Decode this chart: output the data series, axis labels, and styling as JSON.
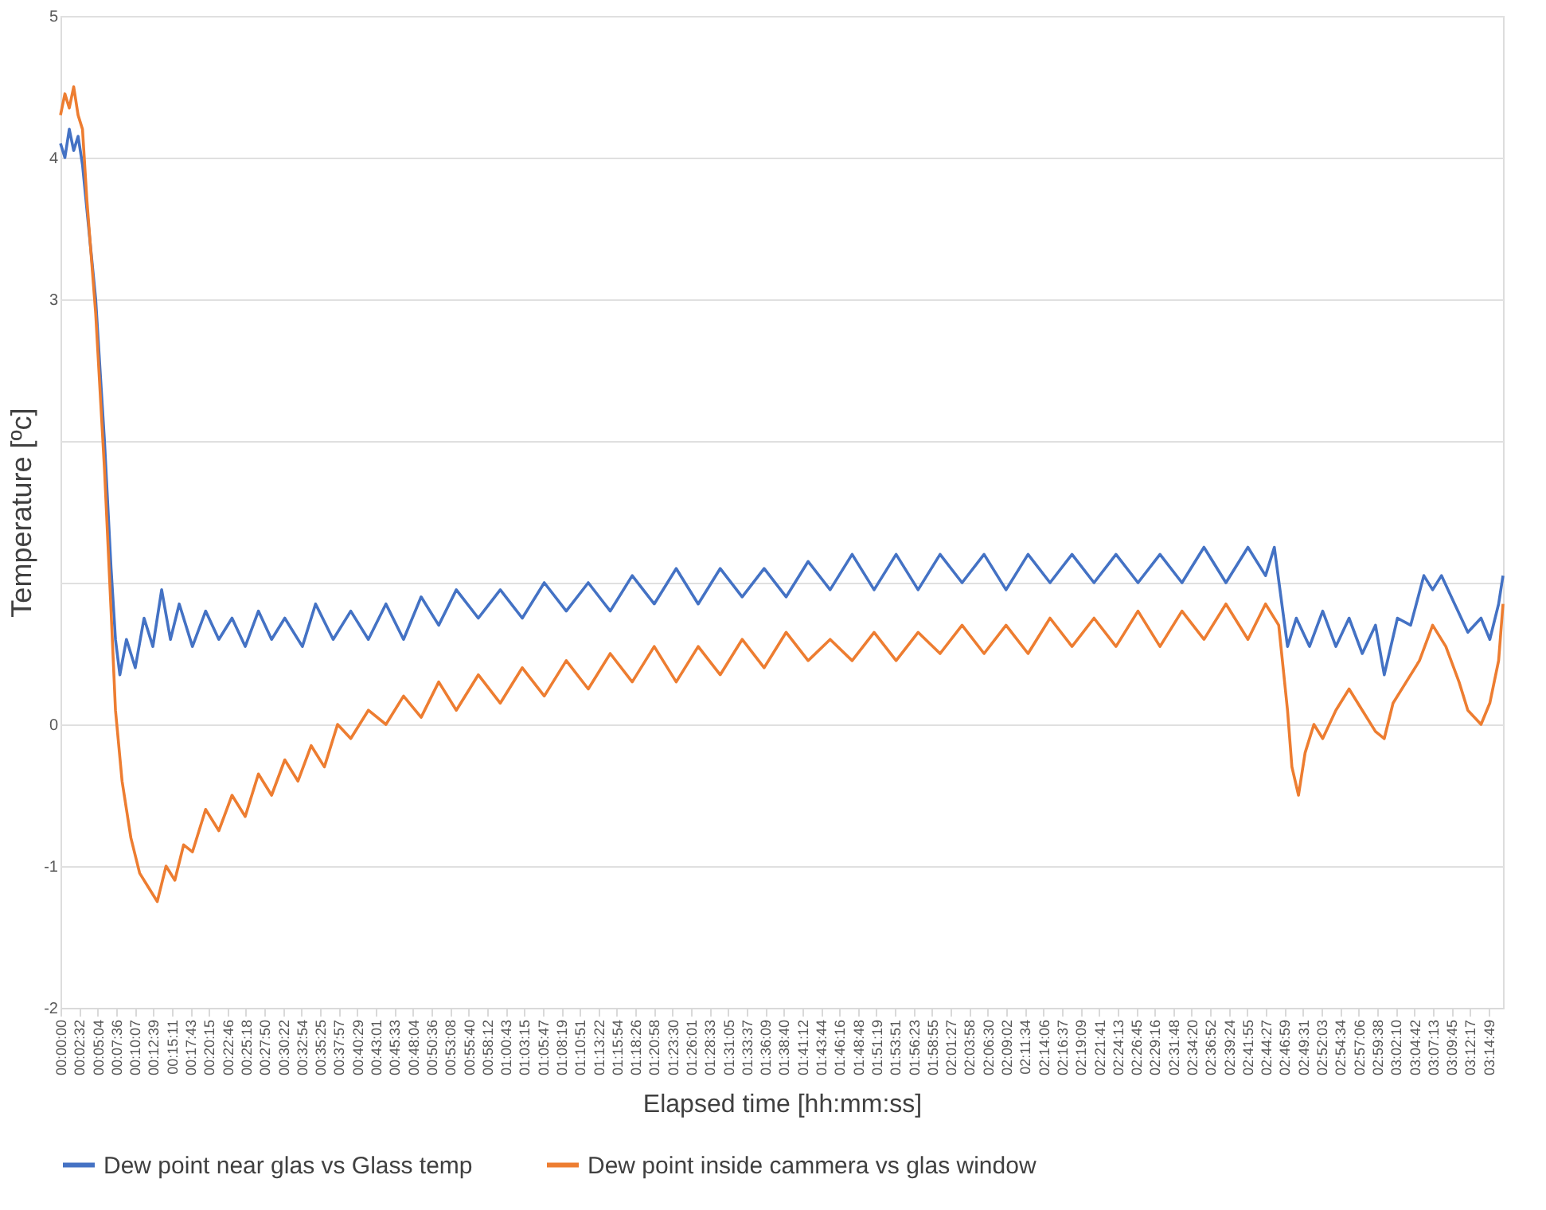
{
  "chart_data": {
    "type": "line",
    "xlabel": "Elapsed time [hh:mm:ss]",
    "ylabel": "Temperature  [ºc]",
    "legend": "bottom",
    "grid": "y",
    "line_style": "solid",
    "marker": "none",
    "xlim": [
      0,
      3.28
    ],
    "ylim": [
      -2,
      5
    ],
    "yticks": [
      -2,
      -1,
      0,
      {
        "value": 1,
        "label": null
      },
      {
        "value": 2,
        "label": null
      },
      3,
      4,
      5
    ],
    "xticks": [
      {
        "value": 0,
        "label": "00:00:00"
      },
      {
        "value": 0.0422,
        "label": "00:02:32"
      },
      {
        "value": 0.0844,
        "label": "00:05:04"
      },
      {
        "value": 0.1267,
        "label": "00:07:36"
      },
      {
        "value": 0.1686,
        "label": "00:10:07"
      },
      {
        "value": 0.2108,
        "label": "00:12:39"
      },
      {
        "value": 0.2531,
        "label": "00:15:11"
      },
      {
        "value": 0.2953,
        "label": "00:17:43"
      },
      {
        "value": 0.3375,
        "label": "00:20:15"
      },
      {
        "value": 0.3794,
        "label": "00:22:46"
      },
      {
        "value": 0.4217,
        "label": "00:25:18"
      },
      {
        "value": 0.4639,
        "label": "00:27:50"
      },
      {
        "value": 0.5061,
        "label": "00:30:22"
      },
      {
        "value": 0.5483,
        "label": "00:32:54"
      },
      {
        "value": 0.5903,
        "label": "00:35:25"
      },
      {
        "value": 0.6325,
        "label": "00:37:57"
      },
      {
        "value": 0.6747,
        "label": "00:40:29"
      },
      {
        "value": 0.7169,
        "label": "00:43:01"
      },
      {
        "value": 0.7592,
        "label": "00:45:33"
      },
      {
        "value": 0.8011,
        "label": "00:48:04"
      },
      {
        "value": 0.8433,
        "label": "00:50:36"
      },
      {
        "value": 0.8856,
        "label": "00:53:08"
      },
      {
        "value": 0.9278,
        "label": "00:55:40"
      },
      {
        "value": 0.97,
        "label": "00:58:12"
      },
      {
        "value": 1.0119,
        "label": "01:00:43"
      },
      {
        "value": 1.0542,
        "label": "01:03:15"
      },
      {
        "value": 1.0964,
        "label": "01:05:47"
      },
      {
        "value": 1.1386,
        "label": "01:08:19"
      },
      {
        "value": 1.1808,
        "label": "01:10:51"
      },
      {
        "value": 1.2228,
        "label": "01:13:22"
      },
      {
        "value": 1.265,
        "label": "01:15:54"
      },
      {
        "value": 1.3072,
        "label": "01:18:26"
      },
      {
        "value": 1.3494,
        "label": "01:20:58"
      },
      {
        "value": 1.3917,
        "label": "01:23:30"
      },
      {
        "value": 1.4336,
        "label": "01:26:01"
      },
      {
        "value": 1.4758,
        "label": "01:28:33"
      },
      {
        "value": 1.5181,
        "label": "01:31:05"
      },
      {
        "value": 1.5603,
        "label": "01:33:37"
      },
      {
        "value": 1.6025,
        "label": "01:36:09"
      },
      {
        "value": 1.6444,
        "label": "01:38:40"
      },
      {
        "value": 1.6867,
        "label": "01:41:12"
      },
      {
        "value": 1.7289,
        "label": "01:43:44"
      },
      {
        "value": 1.7711,
        "label": "01:46:16"
      },
      {
        "value": 1.8133,
        "label": "01:48:48"
      },
      {
        "value": 1.8553,
        "label": "01:51:19"
      },
      {
        "value": 1.8975,
        "label": "01:53:51"
      },
      {
        "value": 1.9397,
        "label": "01:56:23"
      },
      {
        "value": 1.9819,
        "label": "01:58:55"
      },
      {
        "value": 2.0242,
        "label": "02:01:27"
      },
      {
        "value": 2.0661,
        "label": "02:03:58"
      },
      {
        "value": 2.1083,
        "label": "02:06:30"
      },
      {
        "value": 2.1506,
        "label": "02:09:02"
      },
      {
        "value": 2.1928,
        "label": "02:11:34"
      },
      {
        "value": 2.235,
        "label": "02:14:06"
      },
      {
        "value": 2.2769,
        "label": "02:16:37"
      },
      {
        "value": 2.3192,
        "label": "02:19:09"
      },
      {
        "value": 2.3614,
        "label": "02:21:41"
      },
      {
        "value": 2.4036,
        "label": "02:24:13"
      },
      {
        "value": 2.4458,
        "label": "02:26:45"
      },
      {
        "value": 2.4878,
        "label": "02:29:16"
      },
      {
        "value": 2.53,
        "label": "02:31:48"
      },
      {
        "value": 2.5722,
        "label": "02:34:20"
      },
      {
        "value": 2.6144,
        "label": "02:36:52"
      },
      {
        "value": 2.6567,
        "label": "02:39:24"
      },
      {
        "value": 2.6986,
        "label": "02:41:55"
      },
      {
        "value": 2.7408,
        "label": "02:44:27"
      },
      {
        "value": 2.7831,
        "label": "02:46:59"
      },
      {
        "value": 2.8253,
        "label": "02:49:31"
      },
      {
        "value": 2.8675,
        "label": "02:52:03"
      },
      {
        "value": 2.9094,
        "label": "02:54:34"
      },
      {
        "value": 2.9517,
        "label": "02:57:06"
      },
      {
        "value": 2.9939,
        "label": "02:59:38"
      },
      {
        "value": 3.0361,
        "label": "03:02:10"
      },
      {
        "value": 3.0783,
        "label": "03:04:42"
      },
      {
        "value": 3.1203,
        "label": "03:07:13"
      },
      {
        "value": 3.1625,
        "label": "03:09:45"
      },
      {
        "value": 3.2047,
        "label": "03:12:17"
      },
      {
        "value": 3.2469,
        "label": "03:14:49"
      }
    ],
    "series": [
      {
        "name": "Dew point near glas vs Glass temp",
        "color": "#4472c4",
        "x": [
          0,
          0.01,
          0.02,
          0.03,
          0.04,
          0.05,
          0.08,
          0.1,
          0.115,
          0.125,
          0.135,
          0.15,
          0.17,
          0.19,
          0.21,
          0.23,
          0.25,
          0.27,
          0.3,
          0.33,
          0.36,
          0.39,
          0.42,
          0.45,
          0.48,
          0.51,
          0.55,
          0.58,
          0.62,
          0.66,
          0.7,
          0.74,
          0.78,
          0.82,
          0.86,
          0.9,
          0.95,
          1.0,
          1.05,
          1.1,
          1.15,
          1.2,
          1.25,
          1.3,
          1.35,
          1.4,
          1.45,
          1.5,
          1.55,
          1.6,
          1.65,
          1.7,
          1.75,
          1.8,
          1.85,
          1.9,
          1.95,
          2.0,
          2.05,
          2.1,
          2.15,
          2.2,
          2.25,
          2.3,
          2.35,
          2.4,
          2.45,
          2.5,
          2.55,
          2.6,
          2.65,
          2.7,
          2.74,
          2.76,
          2.775,
          2.79,
          2.81,
          2.84,
          2.87,
          2.9,
          2.93,
          2.96,
          2.99,
          3.01,
          3.04,
          3.07,
          3.1,
          3.12,
          3.14,
          3.17,
          3.2,
          3.23,
          3.25,
          3.27,
          3.28
        ],
        "values": [
          4.1,
          4.0,
          4.2,
          4.05,
          4.15,
          3.95,
          3.0,
          2.0,
          1.1,
          0.6,
          0.35,
          0.6,
          0.4,
          0.75,
          0.55,
          0.95,
          0.6,
          0.85,
          0.55,
          0.8,
          0.6,
          0.75,
          0.55,
          0.8,
          0.6,
          0.75,
          0.55,
          0.85,
          0.6,
          0.8,
          0.6,
          0.85,
          0.6,
          0.9,
          0.7,
          0.95,
          0.75,
          0.95,
          0.75,
          1.0,
          0.8,
          1.0,
          0.8,
          1.05,
          0.85,
          1.1,
          0.85,
          1.1,
          0.9,
          1.1,
          0.9,
          1.15,
          0.95,
          1.2,
          0.95,
          1.2,
          0.95,
          1.2,
          1.0,
          1.2,
          0.95,
          1.2,
          1.0,
          1.2,
          1.0,
          1.2,
          1.0,
          1.2,
          1.0,
          1.25,
          1.0,
          1.25,
          1.05,
          1.25,
          0.9,
          0.55,
          0.75,
          0.55,
          0.8,
          0.55,
          0.75,
          0.5,
          0.7,
          0.35,
          0.75,
          0.7,
          1.05,
          0.95,
          1.05,
          0.85,
          0.65,
          0.75,
          0.6,
          0.85,
          1.05
        ]
      },
      {
        "name": "Dew point inside cammera vs glas window",
        "color": "#ed7d31",
        "x": [
          0,
          0.01,
          0.02,
          0.03,
          0.04,
          0.05,
          0.06,
          0.08,
          0.1,
          0.115,
          0.125,
          0.14,
          0.16,
          0.18,
          0.2,
          0.22,
          0.24,
          0.26,
          0.28,
          0.3,
          0.33,
          0.36,
          0.39,
          0.42,
          0.45,
          0.48,
          0.51,
          0.54,
          0.57,
          0.6,
          0.63,
          0.66,
          0.7,
          0.74,
          0.78,
          0.82,
          0.86,
          0.9,
          0.95,
          1.0,
          1.05,
          1.1,
          1.15,
          1.2,
          1.25,
          1.3,
          1.35,
          1.4,
          1.45,
          1.5,
          1.55,
          1.6,
          1.65,
          1.7,
          1.75,
          1.8,
          1.85,
          1.9,
          1.95,
          2.0,
          2.05,
          2.1,
          2.15,
          2.2,
          2.25,
          2.3,
          2.35,
          2.4,
          2.45,
          2.5,
          2.55,
          2.6,
          2.65,
          2.7,
          2.74,
          2.77,
          2.79,
          2.8,
          2.815,
          2.83,
          2.85,
          2.87,
          2.9,
          2.93,
          2.96,
          2.99,
          3.01,
          3.03,
          3.06,
          3.09,
          3.12,
          3.15,
          3.18,
          3.2,
          3.23,
          3.25,
          3.27,
          3.28
        ],
        "values": [
          4.3,
          4.45,
          4.35,
          4.5,
          4.3,
          4.2,
          3.7,
          2.9,
          1.8,
          0.8,
          0.1,
          -0.4,
          -0.8,
          -1.05,
          -1.15,
          -1.25,
          -1.0,
          -1.1,
          -0.85,
          -0.9,
          -0.6,
          -0.75,
          -0.5,
          -0.65,
          -0.35,
          -0.5,
          -0.25,
          -0.4,
          -0.15,
          -0.3,
          0.0,
          -0.1,
          0.1,
          0.0,
          0.2,
          0.05,
          0.3,
          0.1,
          0.35,
          0.15,
          0.4,
          0.2,
          0.45,
          0.25,
          0.5,
          0.3,
          0.55,
          0.3,
          0.55,
          0.35,
          0.6,
          0.4,
          0.65,
          0.45,
          0.6,
          0.45,
          0.65,
          0.45,
          0.65,
          0.5,
          0.7,
          0.5,
          0.7,
          0.5,
          0.75,
          0.55,
          0.75,
          0.55,
          0.8,
          0.55,
          0.8,
          0.6,
          0.85,
          0.6,
          0.85,
          0.7,
          0.1,
          -0.3,
          -0.5,
          -0.2,
          0.0,
          -0.1,
          0.1,
          0.25,
          0.1,
          -0.05,
          -0.1,
          0.15,
          0.3,
          0.45,
          0.7,
          0.55,
          0.3,
          0.1,
          0.0,
          0.15,
          0.45,
          0.85
        ]
      }
    ]
  }
}
